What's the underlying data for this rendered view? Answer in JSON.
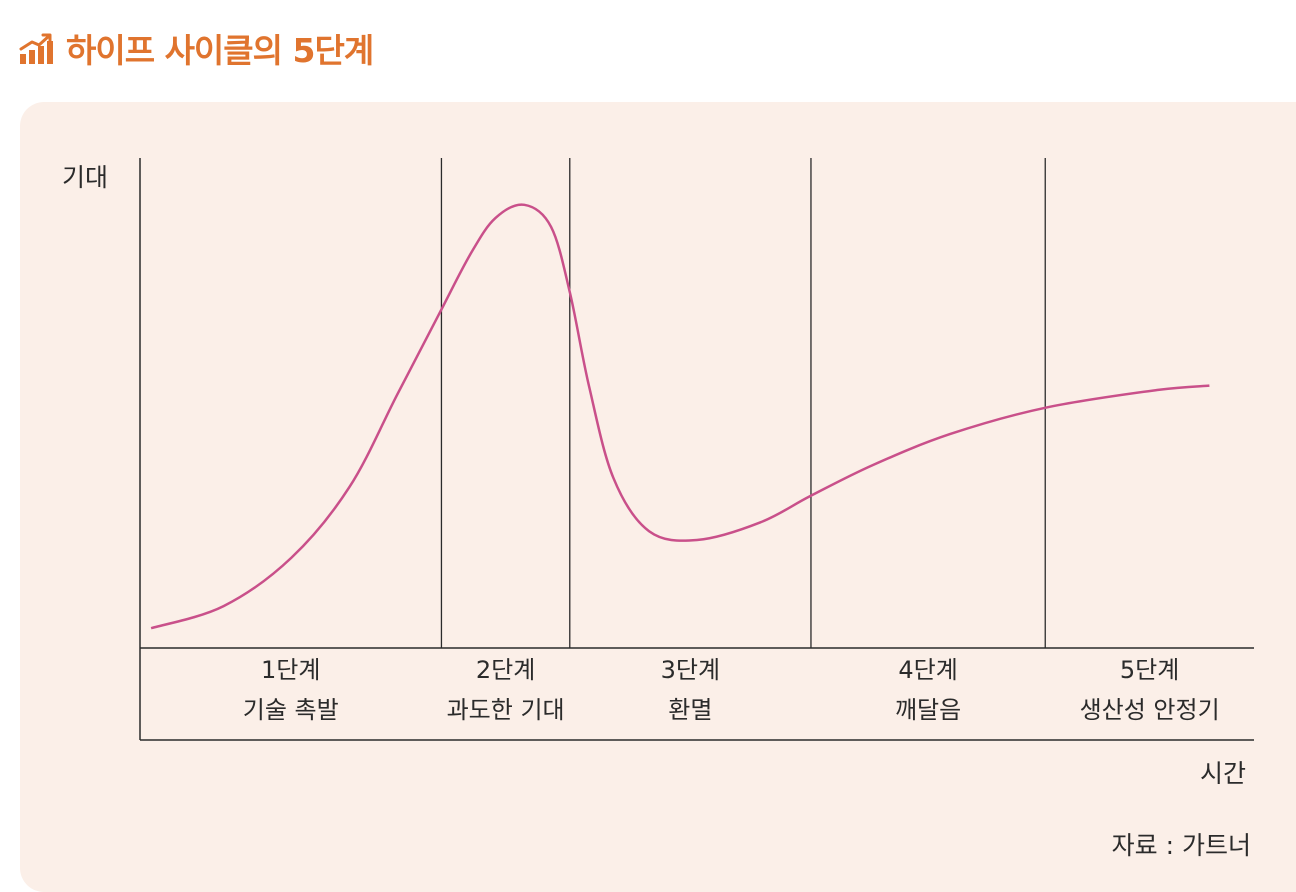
{
  "title": "하이프 사이클의 5단계",
  "colors": {
    "accent": "#e0742e",
    "panel_bg": "#fbefe8",
    "curve": "#c9508a",
    "axis": "#2b2b2b",
    "text": "#2b2b2b"
  },
  "icon": "bar-chart-trend-icon",
  "diagram": {
    "y_axis_label": "기대",
    "x_axis_label": "시간",
    "source": "자료 : 가트너",
    "stages": [
      {
        "number": "1단계",
        "name": "기술 촉발",
        "time_end": 0.2706
      },
      {
        "number": "2단계",
        "name": "과도한 기대",
        "time_end": 0.3858
      },
      {
        "number": "3단계",
        "name": "환멸",
        "time_end": 0.6023
      },
      {
        "number": "4단계",
        "name": "깨달음",
        "time_end": 0.8126
      },
      {
        "number": "5단계",
        "name": "생산성 안정기",
        "time_end": 1.0
      }
    ],
    "curve": {
      "description_points_time_expectation": [
        [
          0.01,
          0.02
        ],
        [
          0.075,
          0.07
        ],
        [
          0.136,
          0.18
        ],
        [
          0.188,
          0.34
        ],
        [
          0.231,
          0.55
        ],
        [
          0.27,
          0.74
        ],
        [
          0.297,
          0.87
        ],
        [
          0.319,
          0.95
        ],
        [
          0.345,
          0.98
        ],
        [
          0.369,
          0.93
        ],
        [
          0.386,
          0.78
        ],
        [
          0.403,
          0.57
        ],
        [
          0.425,
          0.36
        ],
        [
          0.457,
          0.24
        ],
        [
          0.5,
          0.22
        ],
        [
          0.557,
          0.26
        ],
        [
          0.602,
          0.32
        ],
        [
          0.658,
          0.39
        ],
        [
          0.727,
          0.46
        ],
        [
          0.813,
          0.52
        ],
        [
          0.913,
          0.56
        ],
        [
          0.96,
          0.57
        ]
      ]
    }
  }
}
